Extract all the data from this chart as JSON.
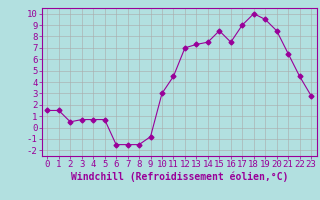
{
  "x": [
    0,
    1,
    2,
    3,
    4,
    5,
    6,
    7,
    8,
    9,
    10,
    11,
    12,
    13,
    14,
    15,
    16,
    17,
    18,
    19,
    20,
    21,
    22,
    23
  ],
  "y": [
    1.5,
    1.5,
    0.5,
    0.7,
    0.7,
    0.7,
    -1.5,
    -1.5,
    -1.5,
    -0.8,
    3.0,
    4.5,
    7.0,
    7.3,
    7.5,
    8.5,
    7.5,
    9.0,
    10.0,
    9.5,
    8.5,
    6.5,
    4.5,
    2.8
  ],
  "line_color": "#990099",
  "marker": "D",
  "markersize": 2.5,
  "bg_color": "#b2e0e0",
  "grid_color": "#aaaaaa",
  "xlabel": "Windchill (Refroidissement éolien,°C)",
  "xlabel_fontsize": 7,
  "tick_fontsize": 6.5,
  "xlim": [
    -0.5,
    23.5
  ],
  "ylim": [
    -2.5,
    10.5
  ],
  "yticks": [
    -2,
    -1,
    0,
    1,
    2,
    3,
    4,
    5,
    6,
    7,
    8,
    9,
    10
  ],
  "xticks": [
    0,
    1,
    2,
    3,
    4,
    5,
    6,
    7,
    8,
    9,
    10,
    11,
    12,
    13,
    14,
    15,
    16,
    17,
    18,
    19,
    20,
    21,
    22,
    23
  ]
}
